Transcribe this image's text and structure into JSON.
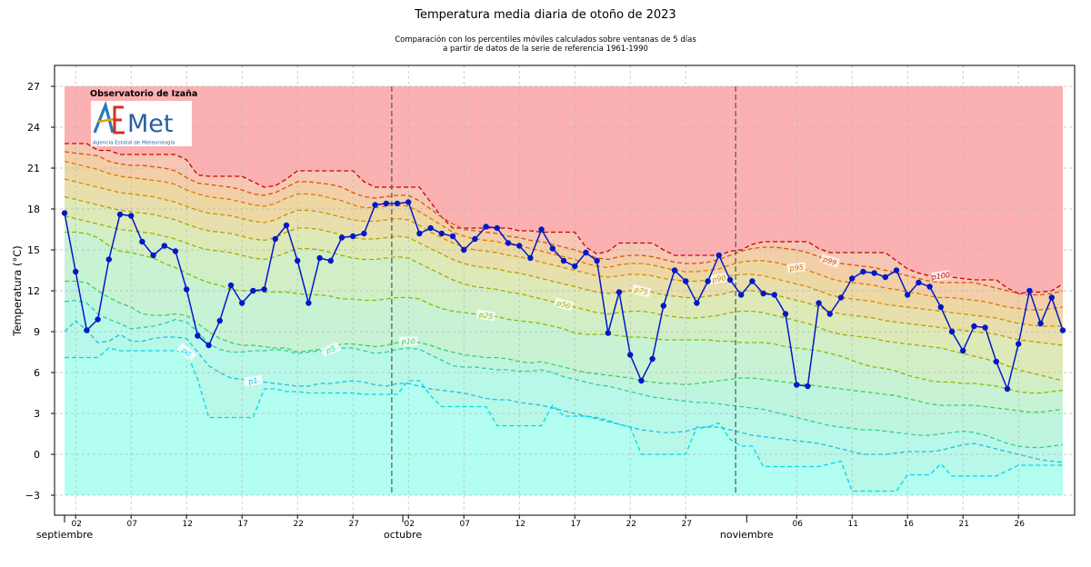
{
  "title": "Temperatura media diaria de otoño de 2023",
  "subtitle_line1": "Comparación con los percentiles móviles calculados sobre ventanas de 5 días",
  "subtitle_line2": "a partir de datos de la serie de referencia 1961-1990",
  "station": "Observatorio de Izaña",
  "logo": {
    "name": "AEMet",
    "subtitle": "Agencia Estatal de Meteorología"
  },
  "chart_data": {
    "type": "line",
    "title": "Temperatura media diaria de otoño de 2023",
    "ylabel": "Temperatura (°C)",
    "xlabel": "",
    "ylim": [
      -4,
      28
    ],
    "yticks": [
      -3,
      0,
      3,
      6,
      9,
      12,
      15,
      18,
      21,
      24,
      27
    ],
    "x_tick_labels": [
      "02",
      "07",
      "12",
      "17",
      "22",
      "27",
      "02",
      "07",
      "12",
      "17",
      "22",
      "27",
      "06",
      "11",
      "16",
      "21",
      "26"
    ],
    "month_labels": [
      "septiembre",
      "octubre",
      "noviembre"
    ],
    "month_boundaries": [
      "2023-10-01",
      "2023-11-01"
    ],
    "grid": true,
    "x_start": "2023-09-01",
    "temperature": [
      17.7,
      13.4,
      9.1,
      9.9,
      14.3,
      17.6,
      17.5,
      15.6,
      14.6,
      15.3,
      14.9,
      12.1,
      8.7,
      8.0,
      9.8,
      12.4,
      11.1,
      12.0,
      12.1,
      15.8,
      16.8,
      14.2,
      11.1,
      14.4,
      14.2,
      15.9,
      16.0,
      16.2,
      18.3,
      18.4,
      18.4,
      18.5,
      16.2,
      16.6,
      16.2,
      16.0,
      15.0,
      15.8,
      16.7,
      16.6,
      15.5,
      15.3,
      14.4,
      16.5,
      15.1,
      14.2,
      13.8,
      14.8,
      14.2,
      8.9,
      11.9,
      7.3,
      5.4,
      7.0,
      10.9,
      13.5,
      12.7,
      11.1,
      12.7,
      14.6,
      12.8,
      11.7,
      12.7,
      11.8,
      11.7,
      10.3,
      5.1,
      5.0,
      11.1,
      10.3,
      11.5,
      12.9,
      13.4,
      13.3,
      13.0,
      13.5,
      11.7,
      12.6,
      12.3,
      10.8,
      9.0,
      7.6,
      9.4,
      9.3,
      6.8,
      4.8,
      8.1,
      12.0,
      9.6,
      11.5,
      9.1
    ],
    "percentile_lines": [
      {
        "name": "p100",
        "color": "#d00000",
        "values": [
          22.8,
          22.8,
          22.8,
          22.3,
          22.3,
          22.0,
          22.0,
          22.0,
          22.0,
          22.0,
          22.0,
          21.6,
          20.5,
          20.4,
          20.4,
          20.4,
          20.4,
          20.0,
          19.6,
          19.7,
          20.2,
          20.8,
          20.8,
          20.8,
          20.8,
          20.8,
          20.8,
          20.0,
          19.6,
          19.6,
          19.6,
          19.6,
          19.6,
          18.5,
          17.4,
          16.6,
          16.6,
          16.6,
          16.6,
          16.6,
          16.6,
          16.4,
          16.4,
          16.3,
          16.3,
          16.3,
          16.3,
          15.2,
          14.7,
          14.9,
          15.5,
          15.5,
          15.5,
          15.5,
          15.0,
          14.6,
          14.6,
          14.6,
          14.6,
          14.6,
          14.9,
          15.0,
          15.4,
          15.6,
          15.6,
          15.6,
          15.6,
          15.6,
          15.1,
          14.8,
          14.8,
          14.8,
          14.8,
          14.8,
          14.8,
          14.2,
          13.6,
          13.3,
          13.1,
          13.1,
          13.0,
          12.9,
          12.8,
          12.8,
          12.8,
          12.2,
          11.8,
          11.9,
          11.9,
          12.0,
          12.5
        ]
      },
      {
        "name": "p99",
        "color": "#e05000",
        "values": [
          22.2,
          22.1,
          22.0,
          21.9,
          21.5,
          21.3,
          21.2,
          21.2,
          21.1,
          21.0,
          20.8,
          20.3,
          19.9,
          19.8,
          19.7,
          19.6,
          19.4,
          19.1,
          19.0,
          19.2,
          19.6,
          20.0,
          20.0,
          19.9,
          19.8,
          19.6,
          19.2,
          18.9,
          18.8,
          18.9,
          19.0,
          19.0,
          18.6,
          18.0,
          17.4,
          16.9,
          16.5,
          16.4,
          16.3,
          16.2,
          16.0,
          15.9,
          15.7,
          15.6,
          15.4,
          15.2,
          15.0,
          14.7,
          14.4,
          14.3,
          14.5,
          14.6,
          14.6,
          14.5,
          14.3,
          14.1,
          14.0,
          14.0,
          14.1,
          14.3,
          14.6,
          14.9,
          15.1,
          15.2,
          15.2,
          15.1,
          15.0,
          14.8,
          14.5,
          14.2,
          14.0,
          13.9,
          13.8,
          13.7,
          13.5,
          13.3,
          13.1,
          12.9,
          12.7,
          12.6,
          12.6,
          12.6,
          12.6,
          12.4,
          12.2,
          12.0,
          11.8,
          11.7,
          11.7,
          11.8,
          12.0
        ]
      },
      {
        "name": "p95",
        "color": "#e07800",
        "values": [
          21.5,
          21.3,
          21.1,
          20.9,
          20.6,
          20.4,
          20.3,
          20.2,
          20.1,
          20.0,
          19.8,
          19.4,
          19.1,
          18.9,
          18.8,
          18.7,
          18.5,
          18.3,
          18.2,
          18.4,
          18.8,
          19.1,
          19.1,
          19.0,
          18.8,
          18.6,
          18.3,
          18.1,
          18.1,
          18.2,
          18.3,
          18.2,
          17.8,
          17.3,
          16.8,
          16.3,
          16.0,
          15.8,
          15.7,
          15.6,
          15.4,
          15.3,
          15.1,
          14.9,
          14.7,
          14.5,
          14.3,
          14.0,
          13.8,
          13.7,
          13.9,
          14.0,
          14.0,
          13.9,
          13.7,
          13.5,
          13.4,
          13.4,
          13.5,
          13.6,
          13.9,
          14.1,
          14.2,
          14.2,
          14.1,
          13.9,
          13.7,
          13.5,
          13.2,
          12.9,
          12.7,
          12.6,
          12.5,
          12.4,
          12.2,
          12.1,
          11.9,
          11.8,
          11.6,
          11.5,
          11.5,
          11.4,
          11.3,
          11.2,
          11.0,
          10.8,
          10.7,
          10.6,
          10.6,
          10.7,
          10.8
        ]
      },
      {
        "name": "p90",
        "color": "#d09000",
        "values": [
          20.2,
          20.0,
          19.8,
          19.6,
          19.4,
          19.2,
          19.1,
          19.0,
          18.9,
          18.7,
          18.5,
          18.2,
          17.9,
          17.7,
          17.6,
          17.5,
          17.3,
          17.1,
          17.0,
          17.2,
          17.6,
          17.9,
          17.9,
          17.8,
          17.6,
          17.4,
          17.2,
          17.1,
          17.1,
          17.2,
          17.3,
          17.2,
          16.8,
          16.3,
          15.9,
          15.5,
          15.2,
          15.0,
          14.9,
          14.8,
          14.6,
          14.5,
          14.3,
          14.1,
          13.9,
          13.7,
          13.5,
          13.3,
          13.1,
          13.0,
          13.1,
          13.2,
          13.2,
          13.1,
          12.9,
          12.8,
          12.7,
          12.7,
          12.8,
          12.9,
          13.1,
          13.2,
          13.2,
          13.1,
          12.9,
          12.7,
          12.5,
          12.3,
          12.0,
          11.7,
          11.5,
          11.4,
          11.3,
          11.2,
          11.0,
          10.9,
          10.8,
          10.7,
          10.6,
          10.5,
          10.4,
          10.3,
          10.2,
          10.1,
          10.0,
          9.8,
          9.6,
          9.5,
          9.4,
          9.4,
          9.4
        ]
      },
      {
        "name": "p75",
        "color": "#b8a000",
        "values": [
          18.9,
          18.7,
          18.5,
          18.3,
          18.1,
          17.9,
          17.8,
          17.7,
          17.6,
          17.4,
          17.2,
          16.9,
          16.6,
          16.4,
          16.3,
          16.2,
          16.0,
          15.8,
          15.7,
          15.9,
          16.3,
          16.6,
          16.6,
          16.5,
          16.3,
          16.1,
          15.9,
          15.8,
          15.8,
          15.9,
          16.0,
          15.9,
          15.5,
          15.1,
          14.7,
          14.3,
          14.0,
          13.8,
          13.7,
          13.6,
          13.4,
          13.3,
          13.1,
          12.9,
          12.7,
          12.5,
          12.3,
          12.1,
          11.9,
          11.8,
          11.9,
          12.0,
          12.0,
          11.9,
          11.7,
          11.6,
          11.5,
          11.5,
          11.6,
          11.7,
          11.9,
          12.0,
          12.0,
          11.9,
          11.7,
          11.5,
          11.3,
          11.1,
          10.8,
          10.5,
          10.3,
          10.2,
          10.1,
          10.0,
          9.8,
          9.7,
          9.6,
          9.5,
          9.4,
          9.3,
          9.2,
          9.1,
          9.0,
          8.9,
          8.8,
          8.6,
          8.4,
          8.3,
          8.2,
          8.1,
          8.0
        ]
      },
      {
        "name": "p50",
        "color": "#a0b000",
        "values": [
          17.5,
          17.3,
          17.1,
          16.9,
          16.7,
          16.5,
          16.4,
          16.3,
          16.2,
          16.0,
          15.8,
          15.5,
          15.2,
          15.0,
          14.9,
          14.8,
          14.6,
          14.4,
          14.3,
          14.5,
          14.8,
          15.1,
          15.1,
          15.0,
          14.8,
          14.6,
          14.4,
          14.3,
          14.3,
          14.4,
          14.5,
          14.4,
          14.0,
          13.6,
          13.2,
          12.8,
          12.5,
          12.3,
          12.2,
          12.1,
          11.9,
          11.8,
          11.6,
          11.4,
          11.2,
          11.0,
          10.8,
          10.6,
          10.4,
          10.3,
          10.4,
          10.5,
          10.5,
          10.4,
          10.2,
          10.1,
          10.0,
          10.0,
          10.1,
          10.2,
          10.4,
          10.5,
          10.5,
          10.4,
          10.2,
          10.0,
          9.8,
          9.6,
          9.3,
          9.0,
          8.8,
          8.7,
          8.6,
          8.5,
          8.3,
          8.2,
          8.1,
          8.0,
          7.9,
          7.8,
          7.6,
          7.4,
          7.2,
          7.0,
          6.8,
          6.5,
          6.2,
          6.0,
          5.8,
          5.6,
          5.4
        ]
      },
      {
        "name": "p25",
        "color": "#80c000",
        "values": [
          16.3,
          16.3,
          16.2,
          15.9,
          15.3,
          14.9,
          14.8,
          14.6,
          14.4,
          14.0,
          13.7,
          13.3,
          12.9,
          12.6,
          12.4,
          12.1,
          12.0,
          12.0,
          11.9,
          11.9,
          11.9,
          11.8,
          11.7,
          11.7,
          11.6,
          11.4,
          11.4,
          11.3,
          11.3,
          11.4,
          11.5,
          11.5,
          11.4,
          11.0,
          10.7,
          10.5,
          10.4,
          10.3,
          10.2,
          10.1,
          9.9,
          9.8,
          9.7,
          9.6,
          9.4,
          9.2,
          8.9,
          8.8,
          8.8,
          8.8,
          8.7,
          8.6,
          8.6,
          8.5,
          8.4,
          8.4,
          8.4,
          8.4,
          8.4,
          8.3,
          8.3,
          8.2,
          8.2,
          8.2,
          8.1,
          7.9,
          7.8,
          7.7,
          7.6,
          7.4,
          7.2,
          6.9,
          6.6,
          6.4,
          6.3,
          6.1,
          5.8,
          5.6,
          5.4,
          5.3,
          5.3,
          5.2,
          5.2,
          5.1,
          5.0,
          4.8,
          4.6,
          4.5,
          4.5,
          4.6,
          4.7
        ]
      },
      {
        "name": "p10",
        "color": "#40d060",
        "values": [
          12.7,
          12.7,
          12.6,
          12.0,
          11.5,
          11.1,
          10.8,
          10.3,
          10.2,
          10.2,
          10.3,
          10.2,
          9.6,
          9.0,
          8.5,
          8.2,
          8.0,
          8.0,
          7.9,
          7.8,
          7.8,
          7.5,
          7.6,
          7.7,
          7.9,
          8.1,
          8.1,
          8.0,
          7.9,
          8.0,
          8.2,
          8.3,
          8.2,
          8.0,
          7.7,
          7.5,
          7.3,
          7.2,
          7.1,
          7.1,
          7.0,
          6.8,
          6.7,
          6.8,
          6.6,
          6.4,
          6.2,
          6.0,
          5.9,
          5.8,
          5.7,
          5.6,
          5.4,
          5.3,
          5.2,
          5.2,
          5.1,
          5.2,
          5.3,
          5.4,
          5.5,
          5.6,
          5.6,
          5.5,
          5.4,
          5.3,
          5.2,
          5.1,
          5.0,
          4.9,
          4.8,
          4.7,
          4.6,
          4.5,
          4.4,
          4.3,
          4.1,
          3.9,
          3.7,
          3.6,
          3.6,
          3.6,
          3.6,
          3.5,
          3.4,
          3.3,
          3.2,
          3.1,
          3.1,
          3.2,
          3.3
        ]
      },
      {
        "name": "p5",
        "color": "#30d0a0",
        "values": [
          11.2,
          11.3,
          11.1,
          10.3,
          9.9,
          9.6,
          9.2,
          9.3,
          9.4,
          9.6,
          9.9,
          9.7,
          9.0,
          8.1,
          7.7,
          7.5,
          7.5,
          7.6,
          7.6,
          7.7,
          7.6,
          7.4,
          7.5,
          7.6,
          7.7,
          7.8,
          7.8,
          7.6,
          7.4,
          7.5,
          7.7,
          7.8,
          7.7,
          7.3,
          6.9,
          6.5,
          6.4,
          6.4,
          6.3,
          6.2,
          6.2,
          6.1,
          6.1,
          6.2,
          6.0,
          5.7,
          5.5,
          5.3,
          5.1,
          5.0,
          4.8,
          4.6,
          4.4,
          4.2,
          4.1,
          4.0,
          3.9,
          3.8,
          3.8,
          3.7,
          3.6,
          3.5,
          3.4,
          3.3,
          3.1,
          2.9,
          2.7,
          2.5,
          2.3,
          2.1,
          2.0,
          1.9,
          1.8,
          1.8,
          1.7,
          1.6,
          1.5,
          1.4,
          1.4,
          1.5,
          1.6,
          1.7,
          1.6,
          1.4,
          1.1,
          0.8,
          0.6,
          0.5,
          0.5,
          0.6,
          0.7
        ]
      },
      {
        "name": "p1",
        "color": "#20c0e0",
        "values": [
          9.0,
          9.8,
          9.1,
          8.2,
          8.3,
          8.8,
          8.3,
          8.3,
          8.5,
          8.6,
          8.6,
          8.5,
          7.5,
          6.5,
          6.0,
          5.6,
          5.5,
          5.4,
          5.3,
          5.2,
          5.1,
          5.0,
          5.0,
          5.2,
          5.2,
          5.3,
          5.4,
          5.3,
          5.1,
          5.0,
          5.2,
          5.2,
          5.0,
          4.8,
          4.7,
          4.6,
          4.5,
          4.3,
          4.1,
          4.0,
          4.0,
          3.8,
          3.7,
          3.6,
          3.4,
          3.2,
          3.0,
          2.8,
          2.6,
          2.4,
          2.2,
          2.0,
          1.8,
          1.7,
          1.6,
          1.6,
          1.7,
          1.9,
          2.0,
          2.0,
          1.8,
          1.6,
          1.4,
          1.3,
          1.2,
          1.1,
          1.0,
          0.9,
          0.8,
          0.6,
          0.4,
          0.2,
          0.0,
          0.0,
          0.0,
          0.1,
          0.2,
          0.2,
          0.2,
          0.3,
          0.5,
          0.7,
          0.8,
          0.6,
          0.4,
          0.2,
          0.0,
          -0.2,
          -0.4,
          -0.5,
          -0.6
        ]
      },
      {
        "name": "p0",
        "color": "#00d8f0",
        "values": [
          7.1,
          7.1,
          7.1,
          7.1,
          7.8,
          7.6,
          7.6,
          7.6,
          7.6,
          7.6,
          7.6,
          7.5,
          5.5,
          2.7,
          2.7,
          2.7,
          2.7,
          2.7,
          4.8,
          4.8,
          4.6,
          4.6,
          4.5,
          4.5,
          4.5,
          4.5,
          4.5,
          4.4,
          4.4,
          4.4,
          4.4,
          5.4,
          5.4,
          4.3,
          3.5,
          3.5,
          3.5,
          3.5,
          3.5,
          2.1,
          2.1,
          2.1,
          2.1,
          2.1,
          3.6,
          2.8,
          2.8,
          2.8,
          2.7,
          2.5,
          2.2,
          2.0,
          0.0,
          0.0,
          0.0,
          0.0,
          0.0,
          2.0,
          2.0,
          2.3,
          1.1,
          0.6,
          0.6,
          -0.9,
          -0.9,
          -0.9,
          -0.9,
          -0.9,
          -0.9,
          -0.7,
          -0.5,
          -2.7,
          -2.7,
          -2.7,
          -2.7,
          -2.7,
          -1.5,
          -1.5,
          -1.5,
          -0.7,
          -1.6,
          -1.6,
          -1.6,
          -1.6,
          -1.6,
          -1.2,
          -0.8,
          -0.8,
          -0.8,
          -0.8,
          -0.8
        ]
      }
    ],
    "contour_labels": [
      "p100",
      "p99",
      "p95",
      "p90",
      "p75",
      "p50",
      "p25",
      "p10",
      "p5",
      "p1",
      "p0"
    ],
    "colors": {
      "line": "#0018c8",
      "marker": "#0018c8",
      "above_p100": "#fbb1b1",
      "below_p0": "#b2fef0"
    }
  }
}
